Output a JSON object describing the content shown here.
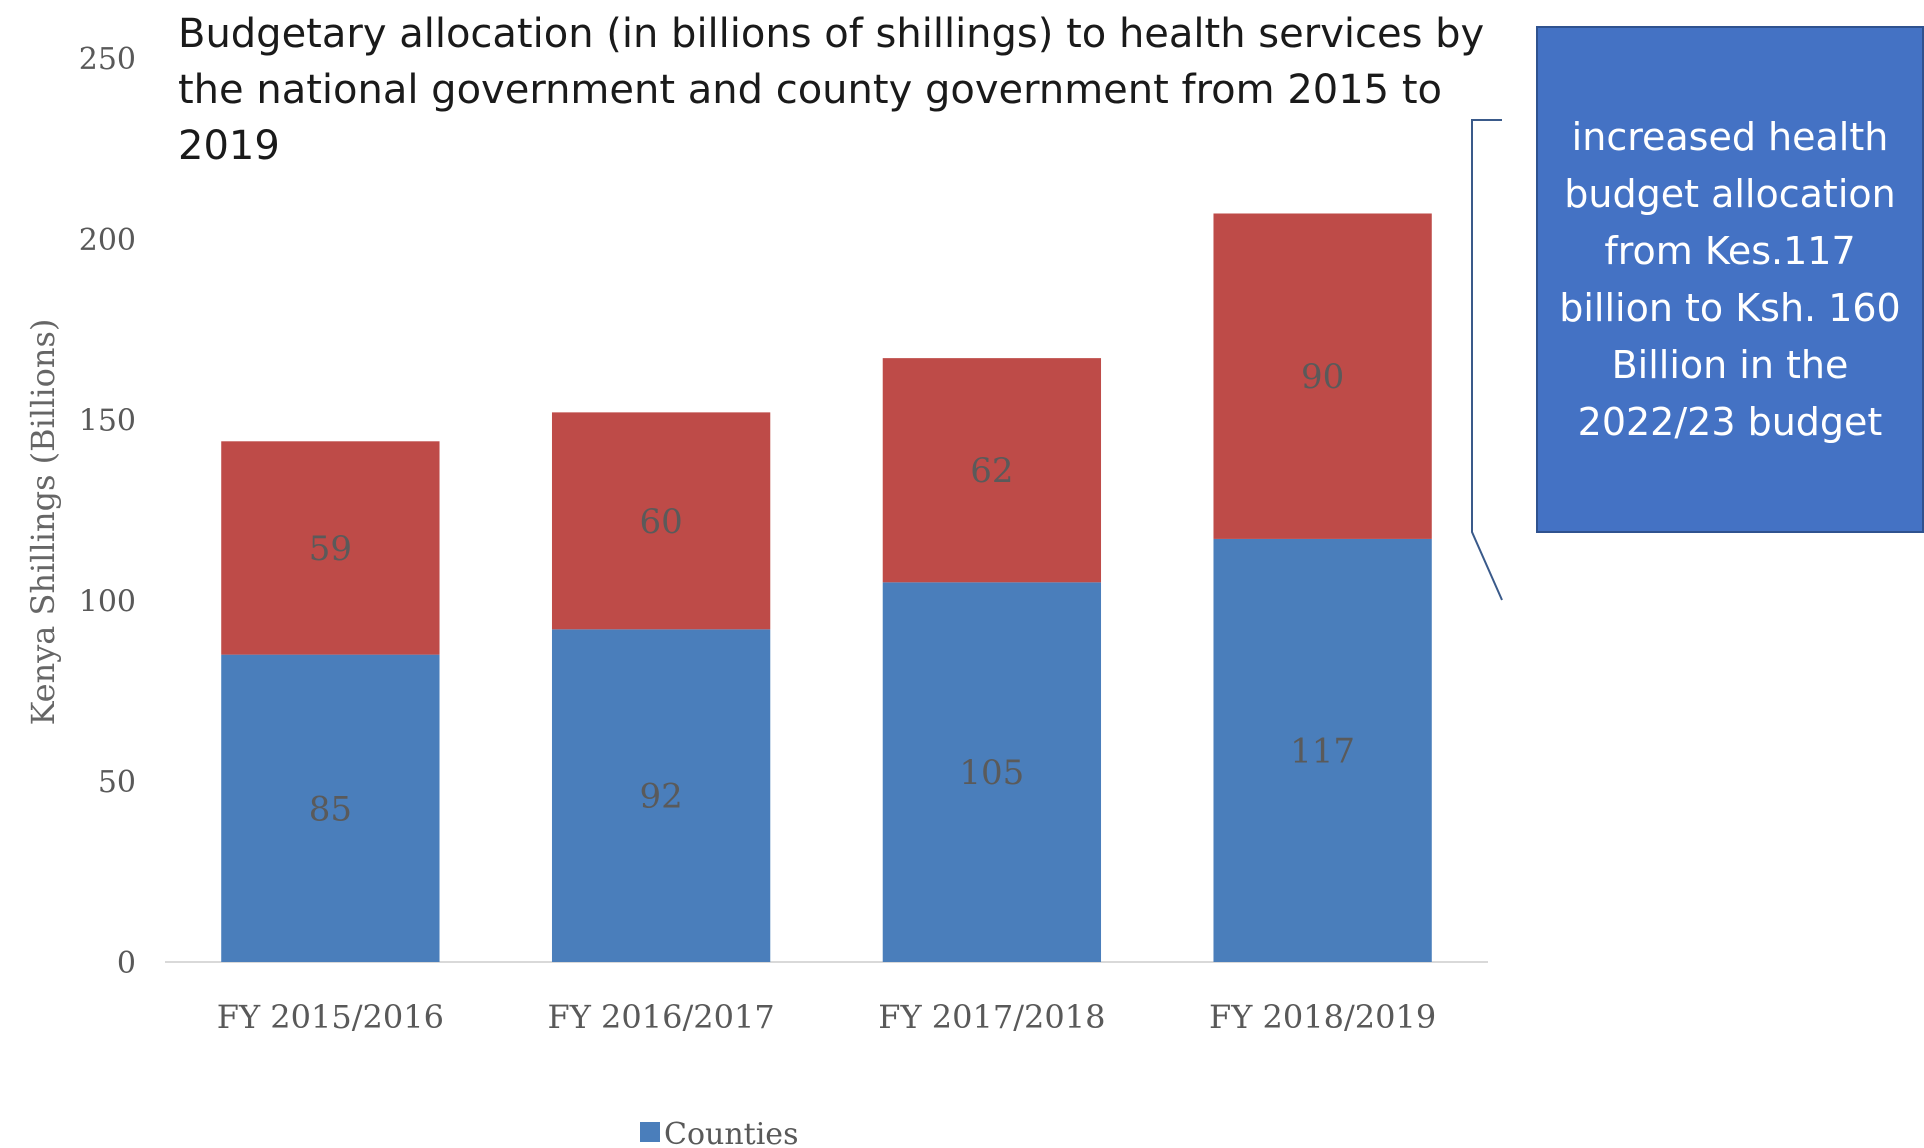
{
  "chart_data": {
    "type": "bar",
    "stacked": true,
    "title": "Budgetary allocation (in billions of shillings) to health services by the national government and county government from 2015 to 2019",
    "ylabel": "Kenya Shillings (Billions)",
    "xlabel": "",
    "ylim": [
      0,
      250
    ],
    "yticks": [
      0,
      50,
      100,
      150,
      200,
      250
    ],
    "categories": [
      "FY 2015/2016",
      "FY 2016/2017",
      "FY 2017/2018",
      "FY 2018/2019"
    ],
    "series": [
      {
        "name": "Counties",
        "values": [
          85,
          92,
          105,
          117
        ],
        "color": "#4a7ebb"
      },
      {
        "values": [
          59,
          60,
          62,
          90
        ],
        "color": "#be4b48"
      }
    ],
    "grid": false,
    "legend": "bottom-center",
    "data_labels": true
  },
  "callout": {
    "text": "increased health budget allocation from Kes.117 billion to  Ksh. 160 Billion in the 2022/23 budget",
    "background": "#4472c4",
    "text_color": "#ffffff"
  }
}
